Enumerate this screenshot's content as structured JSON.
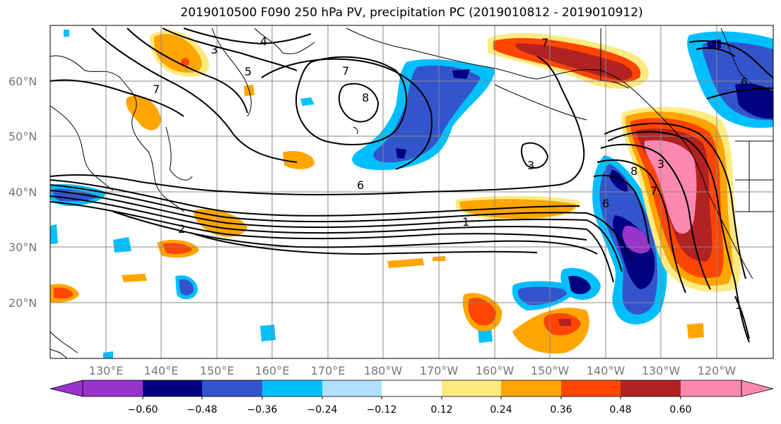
{
  "title": "2019010500 F090 250 hPa PV, precipitation PC (2019010812 - 2019010912)",
  "lat_labels": [
    "60°N",
    "50°N",
    "40°N",
    "30°N",
    "20°N"
  ],
  "lon_labels": [
    "130°E",
    "140°E",
    "150°E",
    "160°E",
    "170°E",
    "180°W",
    "170°W",
    "160°W",
    "150°W",
    "140°W",
    "130°W",
    "120°W"
  ],
  "colorbar": {
    "ticks": [
      "−0.60",
      "−0.48",
      "−0.36",
      "−0.24",
      "−0.12",
      "0.12",
      "0.24",
      "0.36",
      "0.48",
      "0.60"
    ],
    "colors": [
      "#9933cc",
      "#000080",
      "#3355cc",
      "#00bfff",
      "#b0e0ff",
      "#ffffff",
      "#ffea80",
      "#ffa500",
      "#ff4500",
      "#b22222",
      "#ff88b0"
    ]
  },
  "contour_labels": [
    "4",
    "3",
    "5",
    "7",
    "7",
    "8",
    "6",
    "2",
    "1",
    "3",
    "8",
    "6",
    "7",
    "6",
    "1",
    "3",
    "7"
  ]
}
